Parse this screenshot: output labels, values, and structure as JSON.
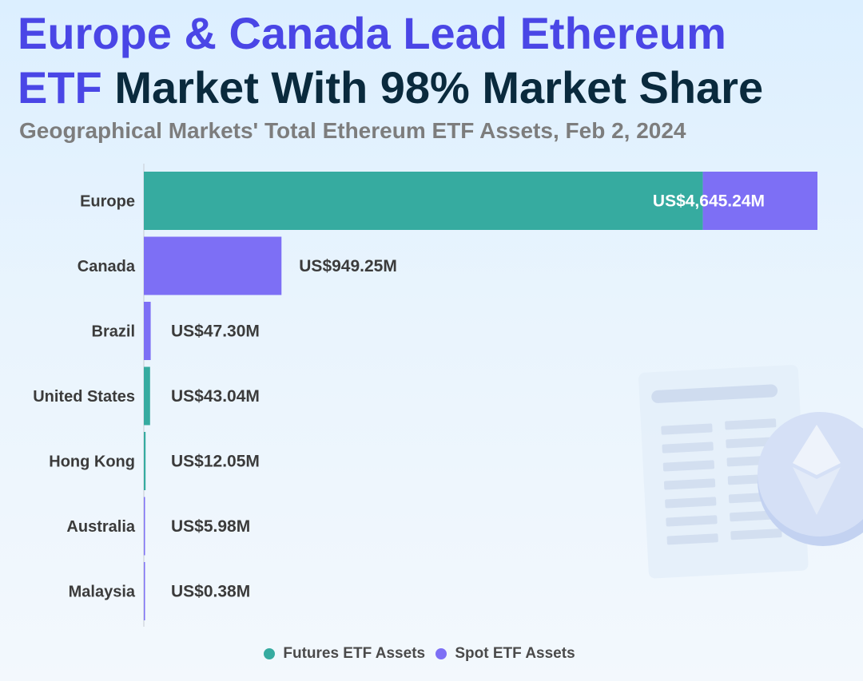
{
  "title": {
    "line1": "Europe & Canada Lead Ethereum",
    "line2_highlight": "ETF",
    "line2_rest": "Market With 98% Market Share"
  },
  "subtitle": "Geographical Markets' Total Ethereum ETF Assets, Feb 2, 2024",
  "colors": {
    "futures": "#36aba0",
    "spot": "#7d6ff5",
    "title_highlight": "#4a46e6",
    "title_dark": "#0a2a3d"
  },
  "decoration": {
    "icon": "ethereum-coin-document-illustration"
  },
  "chart_data": {
    "type": "bar",
    "orientation": "horizontal",
    "stacked": true,
    "categories": [
      "Europe",
      "Canada",
      "Brazil",
      "United States",
      "Hong Kong",
      "Australia",
      "Malaysia"
    ],
    "series": [
      {
        "name": "Futures ETF Assets",
        "values": [
          3855,
          0,
          0,
          43.04,
          12.05,
          0,
          0
        ]
      },
      {
        "name": "Spot ETF Assets",
        "values": [
          790.24,
          949.25,
          47.3,
          0,
          0,
          5.98,
          0.38
        ]
      }
    ],
    "labels": [
      "US$4,645.24M",
      "US$949.25M",
      "US$47.30M",
      "US$43.04M",
      "US$12.05M",
      "US$5.98M",
      "US$0.38M"
    ],
    "xlim": [
      0,
      4645.24
    ],
    "legend_position": "bottom"
  }
}
